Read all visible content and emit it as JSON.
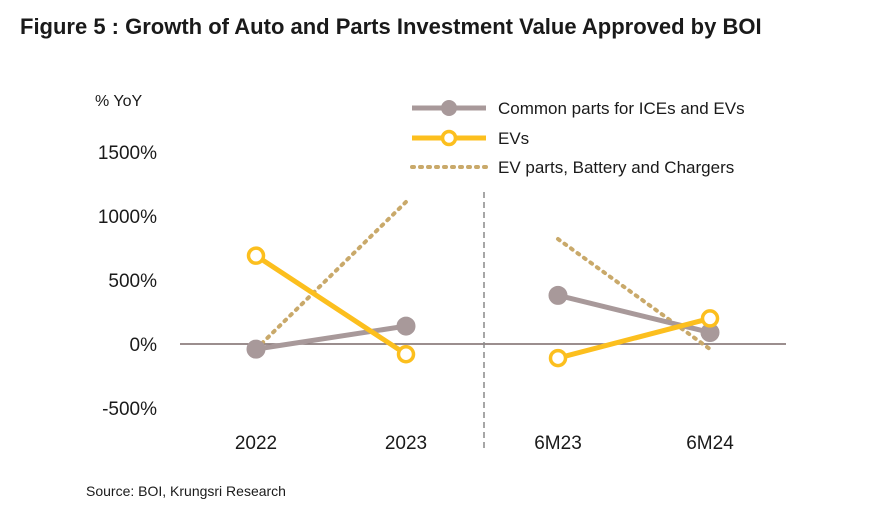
{
  "title": "Figure 5 : Growth of Auto and Parts Investment Value Approved by BOI",
  "source": "Source: BOI, Krungsri Research",
  "colors": {
    "common": "#a8999a",
    "evs": "#fcbf1e",
    "evparts": "#c9a96a",
    "axis": "#7a6868",
    "divider": "#8a8a8a"
  },
  "chart_data": {
    "type": "line",
    "ylabel": "% YoY",
    "ylim": [
      -500,
      1500
    ],
    "yticks": [
      1500,
      1000,
      500,
      0,
      -500
    ],
    "ytick_labels": [
      "1500%",
      "1000%",
      "500%",
      "0%",
      "-500%"
    ],
    "categories": [
      "2022",
      "2023",
      "6M23",
      "6M24"
    ],
    "divider_between": [
      "2023",
      "6M23"
    ],
    "legend_position": "top-right",
    "series": [
      {
        "name": "Common parts for ICEs and EVs",
        "style": "solid-filled-marker",
        "segments": [
          {
            "x": [
              "2022",
              "2023"
            ],
            "values": [
              -40,
              140
            ]
          },
          {
            "x": [
              "6M23",
              "6M24"
            ],
            "values": [
              380,
              90
            ]
          }
        ]
      },
      {
        "name": "EVs",
        "style": "solid-hollow-marker",
        "segments": [
          {
            "x": [
              "2022",
              "2023"
            ],
            "values": [
              690,
              -80
            ]
          },
          {
            "x": [
              "6M23",
              "6M24"
            ],
            "values": [
              -110,
              200
            ]
          }
        ]
      },
      {
        "name": "EV parts, Battery and Chargers",
        "style": "dotted-no-marker",
        "segments": [
          {
            "x": [
              "2022",
              "2023"
            ],
            "values": [
              -40,
              1110
            ]
          },
          {
            "x": [
              "6M23",
              "6M24"
            ],
            "values": [
              820,
              -40
            ]
          }
        ]
      }
    ]
  }
}
